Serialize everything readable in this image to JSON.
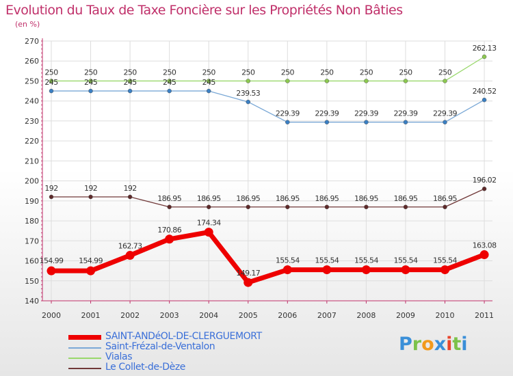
{
  "chart_data": {
    "type": "line",
    "title": "Evolution du Taux de Taxe Foncière sur les Propriétés Non Bâties",
    "ylabel": "(en %)",
    "xlabel": "",
    "ylim": [
      140,
      270
    ],
    "y_ticks": [
      "140",
      "150",
      "160",
      "170",
      "180",
      "190",
      "200",
      "210",
      "220",
      "230",
      "240",
      "250",
      "260",
      "270"
    ],
    "categories": [
      "2000",
      "2001",
      "2002",
      "2003",
      "2004",
      "2005",
      "2006",
      "2007",
      "2008",
      "2009",
      "2010",
      "2011"
    ],
    "grid": true,
    "series": [
      {
        "name": "Vialas",
        "color": "#99d86b",
        "marker_color": "#8cc850",
        "values": [
          250,
          250,
          250,
          250,
          250,
          250,
          250,
          250,
          250,
          250,
          250,
          262.13
        ],
        "labels": [
          "250",
          "250",
          "250",
          "250",
          "250",
          "250",
          "250",
          "250",
          "250",
          "250",
          "250",
          "262.13"
        ]
      },
      {
        "name": "Saint-Frézal-de-Ventalon",
        "color": "#7aa8d6",
        "marker_color": "#3a7fc3",
        "values": [
          245,
          245,
          245,
          245,
          245,
          239.53,
          229.39,
          229.39,
          229.39,
          229.39,
          229.39,
          240.52
        ],
        "labels": [
          "245",
          "245",
          "245",
          "245",
          "245",
          "239.53",
          "229.39",
          "229.39",
          "229.39",
          "229.39",
          "229.39",
          "240.52"
        ]
      },
      {
        "name": "Le Collet-de-Dèze",
        "color": "#703838",
        "marker_color": "#5e2a2a",
        "values": [
          192,
          192,
          192,
          186.95,
          186.95,
          186.95,
          186.95,
          186.95,
          186.95,
          186.95,
          186.95,
          196.02
        ],
        "labels": [
          "192",
          "192",
          "192",
          "186.95",
          "186.95",
          "186.95",
          "186.95",
          "186.95",
          "186.95",
          "186.95",
          "186.95",
          "196.02"
        ]
      },
      {
        "name": "SAINT-ANDéOL-DE-CLERGUEMORT",
        "color": "#ee0000",
        "marker_color": "#ee0000",
        "values": [
          154.99,
          154.99,
          162.73,
          170.86,
          174.34,
          149.17,
          155.54,
          155.54,
          155.54,
          155.54,
          155.54,
          163.08
        ],
        "labels": [
          "154.99",
          "154.99",
          "162.73",
          "170.86",
          "174.34",
          "149.17",
          "155.54",
          "155.54",
          "155.54",
          "155.54",
          "155.54",
          "163.08"
        ]
      }
    ],
    "legend_order": [
      "SAINT-ANDéOL-DE-CLERGUEMORT",
      "Saint-Frézal-de-Ventalon",
      "Vialas",
      "Le Collet-de-Dèze"
    ],
    "legend_placement": "bottom-left"
  },
  "logo": {
    "letters": [
      "P",
      "r",
      "o",
      "x",
      "i",
      "t",
      "i"
    ],
    "colors": [
      "#3a8fd8",
      "#7cc24a",
      "#f29a1c",
      "#3a8fd8",
      "#e8452c",
      "#7cc24a",
      "#3a8fd8"
    ]
  }
}
